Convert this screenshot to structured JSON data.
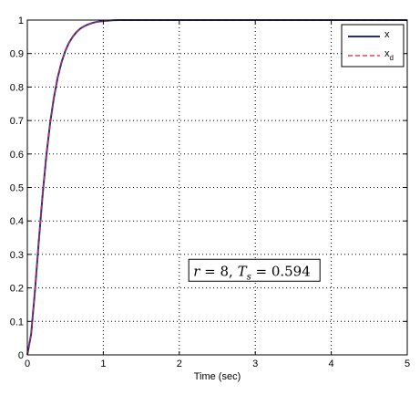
{
  "chart_data": {
    "type": "line",
    "title": "",
    "xlabel": "Time (sec)",
    "ylabel": "",
    "xlim": [
      0,
      5
    ],
    "ylim": [
      0,
      1
    ],
    "xticks": [
      "0",
      "1",
      "2",
      "3",
      "4",
      "5"
    ],
    "yticks": [
      "0",
      "0.1",
      "0.2",
      "0.3",
      "0.4",
      "0.5",
      "0.6",
      "0.7",
      "0.8",
      "0.9",
      "1"
    ],
    "grid": true,
    "legend_position": "top-right",
    "series": [
      {
        "name": "x",
        "legend_main": "x",
        "legend_sub": "",
        "color": "#1a2fa0",
        "style": "solid",
        "x": [
          0,
          0.05,
          0.1,
          0.15,
          0.2,
          0.25,
          0.3,
          0.35,
          0.4,
          0.45,
          0.5,
          0.55,
          0.6,
          0.65,
          0.7,
          0.75,
          0.8,
          0.85,
          0.9,
          0.95,
          1.0,
          1.05,
          1.1,
          1.15,
          1.2
        ],
        "values": [
          0,
          0.062,
          0.19,
          0.337,
          0.475,
          0.595,
          0.692,
          0.769,
          0.829,
          0.874,
          0.908,
          0.933,
          0.951,
          0.965,
          0.975,
          0.982,
          0.987,
          0.991,
          0.994,
          0.996,
          0.997,
          0.998,
          0.999,
          0.9995,
          1.0
        ]
      },
      {
        "name": "x_d",
        "legend_main": "x",
        "legend_sub": "d",
        "color": "#d62728",
        "style": "dashed",
        "x": [
          0,
          0.05,
          0.1,
          0.15,
          0.2,
          0.25,
          0.3,
          0.35,
          0.4,
          0.45,
          0.5,
          0.55,
          0.6,
          0.65,
          0.7,
          0.75,
          0.8,
          0.85,
          0.9,
          0.95,
          1.0,
          1.05,
          1.1,
          1.15,
          1.2
        ],
        "values": [
          0,
          0.062,
          0.19,
          0.337,
          0.475,
          0.595,
          0.692,
          0.769,
          0.829,
          0.874,
          0.908,
          0.933,
          0.951,
          0.965,
          0.975,
          0.982,
          0.987,
          0.991,
          0.994,
          0.996,
          0.997,
          0.998,
          0.999,
          0.9995,
          1.0
        ]
      }
    ],
    "annotation": {
      "text": "r = 8, T_s = 0.594",
      "r_label": "r",
      "r_value": "8",
      "ts_main": "T",
      "ts_sub": "s",
      "ts_value": "0.594",
      "x": 3.0,
      "y": 0.25
    },
    "colors": {
      "axis": "#000000",
      "grid": "#000000",
      "background": "#ffffff"
    }
  }
}
